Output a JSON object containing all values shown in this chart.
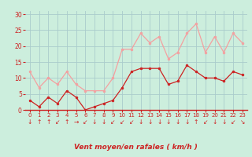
{
  "x": [
    0,
    1,
    2,
    3,
    4,
    5,
    6,
    7,
    8,
    9,
    10,
    11,
    12,
    13,
    14,
    15,
    16,
    17,
    18,
    19,
    20,
    21,
    22,
    23
  ],
  "avg_wind": [
    3,
    1,
    4,
    2,
    6,
    4,
    0,
    1,
    2,
    3,
    7,
    12,
    13,
    13,
    13,
    8,
    9,
    14,
    12,
    10,
    10,
    9,
    12,
    11
  ],
  "gust_wind": [
    12,
    7,
    10,
    8,
    12,
    8,
    6,
    6,
    6,
    10,
    19,
    19,
    24,
    21,
    23,
    16,
    18,
    24,
    27,
    18,
    23,
    18,
    24,
    21
  ],
  "avg_color": "#cc2222",
  "gust_color": "#f4a0a0",
  "bg_color": "#cceedd",
  "grid_color": "#aacccc",
  "xlabel": "Vent moyen/en rafales ( km/h )",
  "ylabel_ticks": [
    0,
    5,
    10,
    15,
    20,
    25,
    30
  ],
  "xlim": [
    -0.5,
    23.5
  ],
  "ylim": [
    0,
    31
  ],
  "xlabel_color": "#cc2222",
  "tick_color": "#cc2222",
  "arrow_symbols": [
    "↓",
    "↑",
    "↑",
    "↙",
    "↑",
    "→",
    "↙",
    "↓",
    "↓",
    "↙",
    "↙",
    "↙",
    "↓",
    "↓",
    "↓",
    "↓",
    "↓",
    "↓",
    "↑",
    "↙",
    "↓",
    "↓",
    "↙",
    "↘"
  ]
}
